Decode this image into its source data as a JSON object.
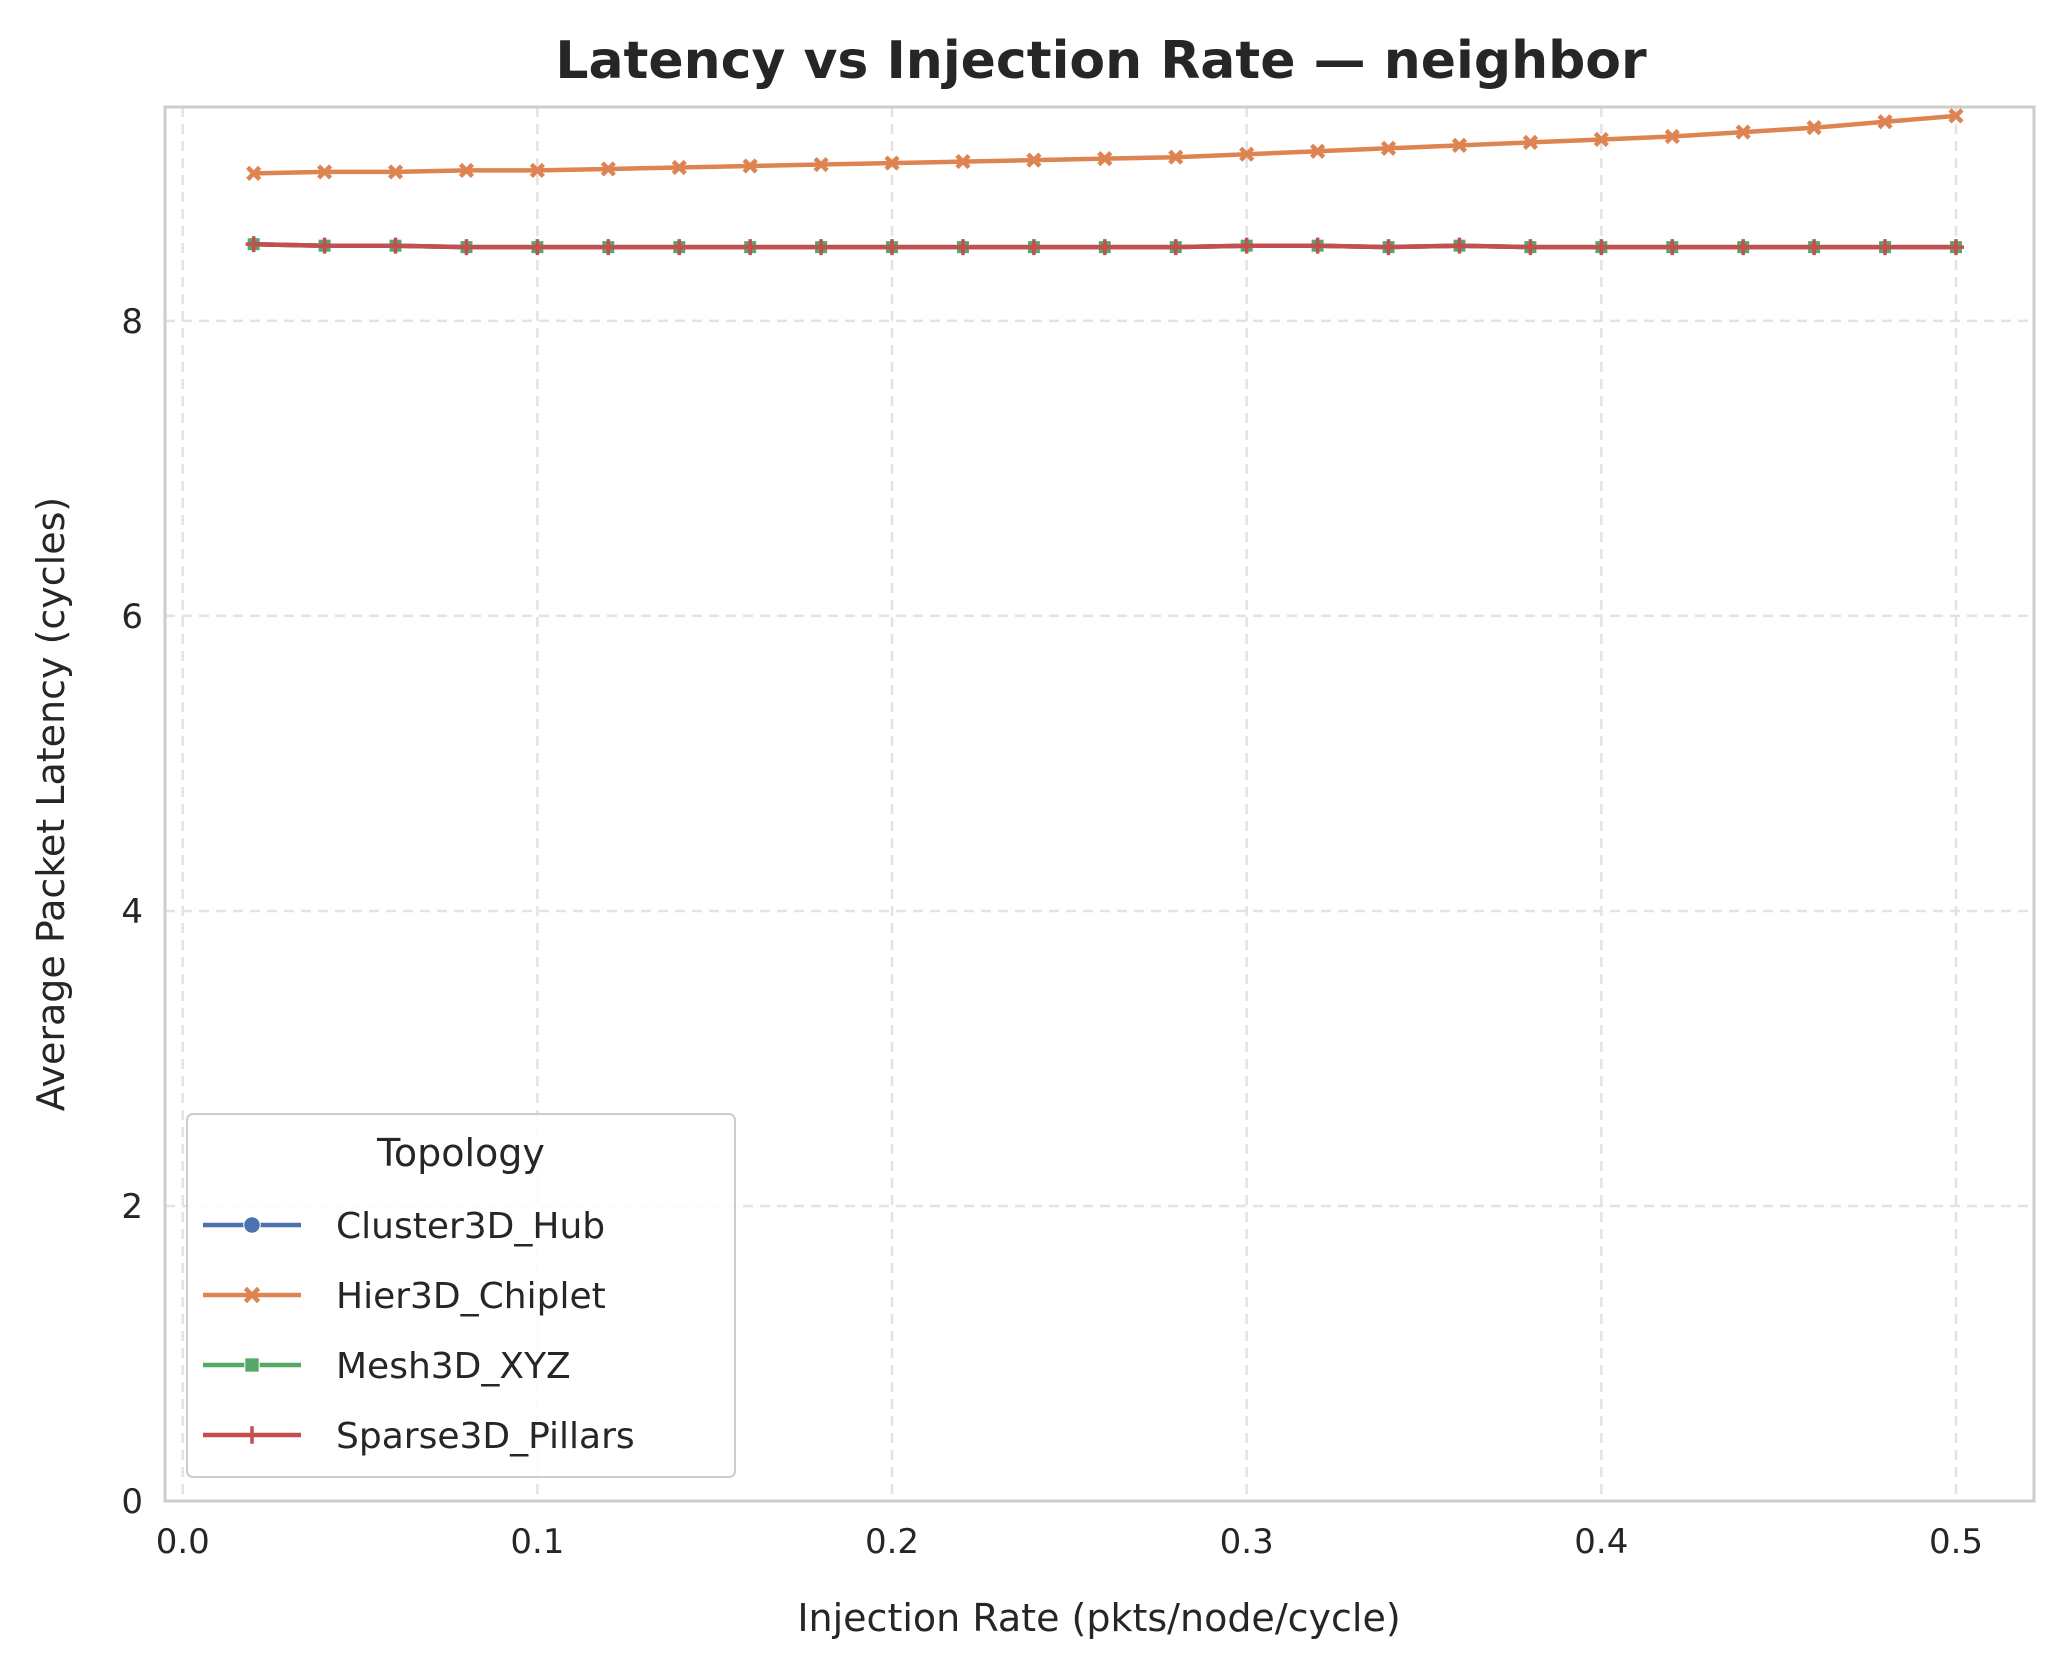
{
  "chart_data": {
    "type": "line",
    "title": "Latency vs Injection Rate — neighbor",
    "xlabel": "Injection Rate (pkts/node/cycle)",
    "ylabel": "Average Packet Latency (cycles)",
    "xlim": [
      -0.005,
      0.522
    ],
    "ylim": [
      0,
      9.45
    ],
    "xticks": [
      0.0,
      0.1,
      0.2,
      0.3,
      0.4,
      0.5
    ],
    "xtick_labels": [
      "0.0",
      "0.1",
      "0.2",
      "0.3",
      "0.4",
      "0.5"
    ],
    "yticks": [
      0,
      2,
      4,
      6,
      8
    ],
    "ytick_labels": [
      "0",
      "2",
      "4",
      "6",
      "8"
    ],
    "grid": true,
    "legend_title": "Topology",
    "legend_position": "lower-left",
    "x": [
      0.02,
      0.04,
      0.06,
      0.08,
      0.1,
      0.12,
      0.14,
      0.16,
      0.18,
      0.2,
      0.22,
      0.24,
      0.26,
      0.28,
      0.3,
      0.32,
      0.34,
      0.36,
      0.38,
      0.4,
      0.42,
      0.44,
      0.46,
      0.48,
      0.5
    ],
    "series": [
      {
        "name": "Cluster3D_Hub",
        "color": "#4c72b0",
        "marker": "circle",
        "values": [
          8.52,
          8.51,
          8.51,
          8.5,
          8.5,
          8.5,
          8.5,
          8.5,
          8.5,
          8.5,
          8.5,
          8.5,
          8.5,
          8.5,
          8.51,
          8.51,
          8.5,
          8.51,
          8.5,
          8.5,
          8.5,
          8.5,
          8.5,
          8.5,
          8.5
        ]
      },
      {
        "name": "Hier3D_Chiplet",
        "color": "#dd8452",
        "marker": "x",
        "values": [
          9.0,
          9.01,
          9.01,
          9.02,
          9.02,
          9.03,
          9.04,
          9.05,
          9.06,
          9.07,
          9.08,
          9.09,
          9.1,
          9.11,
          9.13,
          9.15,
          9.17,
          9.19,
          9.21,
          9.23,
          9.25,
          9.28,
          9.31,
          9.35,
          9.39
        ]
      },
      {
        "name": "Mesh3D_XYZ",
        "color": "#55a868",
        "marker": "square",
        "values": [
          8.52,
          8.51,
          8.51,
          8.5,
          8.5,
          8.5,
          8.5,
          8.5,
          8.5,
          8.5,
          8.5,
          8.5,
          8.5,
          8.5,
          8.51,
          8.51,
          8.5,
          8.51,
          8.5,
          8.5,
          8.5,
          8.5,
          8.5,
          8.5,
          8.5
        ]
      },
      {
        "name": "Sparse3D_Pillars",
        "color": "#c44e52",
        "marker": "plus",
        "values": [
          8.52,
          8.51,
          8.51,
          8.5,
          8.5,
          8.5,
          8.5,
          8.5,
          8.5,
          8.5,
          8.5,
          8.5,
          8.5,
          8.5,
          8.51,
          8.51,
          8.5,
          8.51,
          8.5,
          8.5,
          8.5,
          8.5,
          8.5,
          8.5,
          8.5
        ]
      }
    ]
  }
}
